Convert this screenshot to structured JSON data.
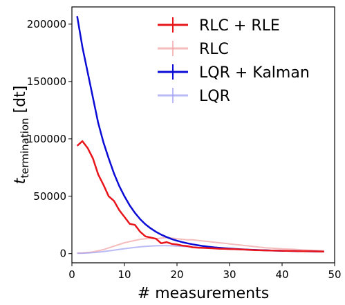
{
  "chart_data": {
    "type": "line",
    "xlabel": "# measurements",
    "ylabel_main": "t",
    "ylabel_sub": "termination",
    "ylabel_unit": " [dt]",
    "xlim": [
      0,
      50
    ],
    "ylim": [
      -8000,
      215000
    ],
    "xticks": [
      0,
      10,
      20,
      30,
      40,
      50
    ],
    "yticks": [
      0,
      50000,
      100000,
      150000,
      200000
    ],
    "ytick_labels": [
      "0",
      "50000",
      "100000",
      "150000",
      "200000"
    ],
    "grid": false,
    "legend_position": "upper-right",
    "series": [
      {
        "name": "RLC + RLE",
        "color": "#e8151b",
        "opacity": 1,
        "x": [
          1,
          2,
          3,
          4,
          5,
          6,
          7,
          8,
          9,
          10,
          11,
          12,
          13,
          14,
          15,
          16,
          17,
          18,
          19,
          20,
          21,
          22,
          23,
          24,
          25,
          26,
          27,
          28,
          29,
          30,
          31,
          32,
          33,
          34,
          35,
          36,
          37,
          38,
          39,
          40,
          41,
          42,
          43,
          44,
          45,
          46,
          47,
          48
        ],
        "y": [
          94000,
          98000,
          92000,
          83000,
          69000,
          60000,
          50000,
          46000,
          38000,
          32000,
          26000,
          25000,
          19000,
          15000,
          14000,
          13000,
          9000,
          10000,
          8500,
          8000,
          7000,
          6500,
          5500,
          5200,
          5000,
          4800,
          4600,
          4300,
          4200,
          4000,
          3900,
          3700,
          3500,
          3200,
          3000,
          2900,
          2800,
          2700,
          2600,
          2500,
          2400,
          2300,
          2200,
          2100,
          2050,
          2000,
          1900,
          1800
        ]
      },
      {
        "name": "RLC",
        "color": "#f0a0a0",
        "opacity": 0.7,
        "x": [
          1,
          2,
          3,
          4,
          5,
          6,
          7,
          8,
          9,
          10,
          11,
          12,
          13,
          14,
          15,
          16,
          17,
          18,
          19,
          20,
          21,
          22,
          23,
          24,
          25,
          26,
          27,
          28,
          29,
          30,
          31,
          32,
          33,
          34,
          35,
          36,
          37,
          38,
          39,
          40,
          41,
          42,
          43,
          44,
          45,
          46,
          47,
          48
        ],
        "y": [
          500,
          600,
          1000,
          1500,
          2500,
          3500,
          5000,
          6500,
          8000,
          9500,
          10500,
          11500,
          12500,
          13000,
          13500,
          13000,
          13500,
          14000,
          13500,
          13000,
          12500,
          12000,
          12000,
          11500,
          11000,
          10500,
          10000,
          9500,
          9000,
          8500,
          8000,
          7500,
          7000,
          6500,
          6000,
          5500,
          5000,
          4800,
          4500,
          4200,
          4000,
          3800,
          3500,
          3300,
          3100,
          2900,
          2700,
          2500
        ]
      },
      {
        "name": "LQR + Kalman",
        "color": "#0b0bd6",
        "opacity": 1,
        "x": [
          1,
          2,
          3,
          4,
          5,
          6,
          7,
          8,
          9,
          10,
          11,
          12,
          13,
          14,
          15,
          16,
          17,
          18,
          19,
          20,
          21,
          22,
          23,
          24,
          25,
          26,
          27,
          28,
          29,
          30,
          31,
          32,
          33,
          34,
          35,
          36,
          37,
          38,
          39,
          40,
          41,
          42,
          43,
          44,
          45,
          46,
          47,
          48
        ],
        "y": [
          207000,
          180000,
          158000,
          136000,
          114000,
          97000,
          83000,
          70000,
          59000,
          50000,
          42000,
          35500,
          30000,
          25500,
          22000,
          19000,
          16500,
          14500,
          12700,
          11200,
          10000,
          9000,
          8100,
          7300,
          6600,
          6000,
          5500,
          5100,
          4700,
          4400,
          4100,
          3800,
          3600,
          3400,
          3200,
          3050,
          2900,
          2750,
          2600,
          2500,
          2400,
          2300,
          2200,
          2100,
          2000,
          1950,
          1900,
          1850
        ]
      },
      {
        "name": "LQR",
        "color": "#9c9cf2",
        "opacity": 0.7,
        "x": [
          1,
          2,
          3,
          4,
          5,
          6,
          7,
          8,
          9,
          10,
          11,
          12,
          13,
          14,
          15,
          16,
          17,
          18,
          19,
          20,
          21,
          22,
          23,
          24,
          25,
          26,
          27,
          28,
          29,
          30,
          31,
          32,
          33,
          34,
          35,
          36,
          37,
          38,
          39,
          40,
          41,
          42,
          43,
          44,
          45,
          46,
          47,
          48
        ],
        "y": [
          300,
          400,
          600,
          900,
          1300,
          1800,
          2400,
          3000,
          3700,
          4300,
          4900,
          5400,
          5900,
          6300,
          6600,
          6800,
          6900,
          6900,
          6800,
          6600,
          6400,
          6100,
          5800,
          5500,
          5200,
          4900,
          4600,
          4400,
          4100,
          3900,
          3700,
          3500,
          3300,
          3100,
          2950,
          2800,
          2650,
          2500,
          2400,
          2300,
          2200,
          2100,
          2000,
          1950,
          1900,
          1850,
          1800,
          1750
        ]
      }
    ]
  }
}
